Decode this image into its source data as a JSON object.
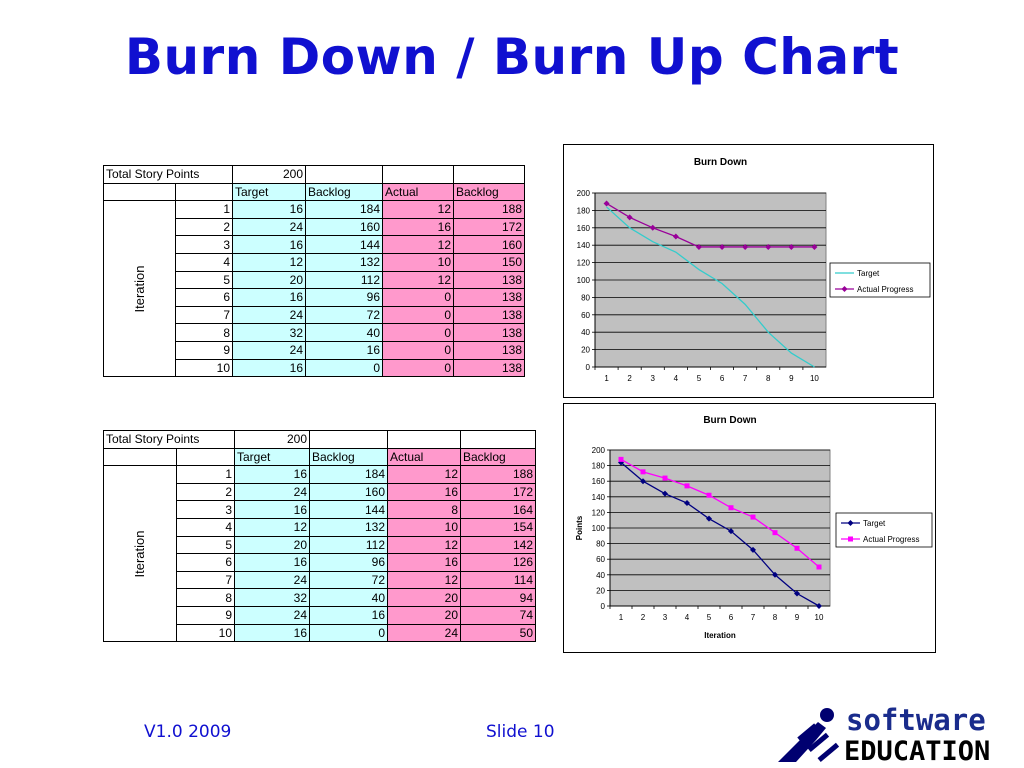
{
  "slide": {
    "title": "Burn Down / Burn Up Chart",
    "version": "V1.0 2009",
    "slide_number": "Slide 10",
    "logo_top": "software",
    "logo_bottom": "EDUCATION"
  },
  "tables": [
    {
      "total_label": "Total Story Points",
      "total_value": "200",
      "headers": [
        "Target",
        "Backlog",
        "Actual",
        "Backlog"
      ],
      "row_group_label": "Iteration",
      "rows": [
        [
          "1",
          "16",
          "184",
          "12",
          "188"
        ],
        [
          "2",
          "24",
          "160",
          "16",
          "172"
        ],
        [
          "3",
          "16",
          "144",
          "12",
          "160"
        ],
        [
          "4",
          "12",
          "132",
          "10",
          "150"
        ],
        [
          "5",
          "20",
          "112",
          "12",
          "138"
        ],
        [
          "6",
          "16",
          "96",
          "0",
          "138"
        ],
        [
          "7",
          "24",
          "72",
          "0",
          "138"
        ],
        [
          "8",
          "32",
          "40",
          "0",
          "138"
        ],
        [
          "9",
          "24",
          "16",
          "0",
          "138"
        ],
        [
          "10",
          "16",
          "0",
          "0",
          "138"
        ]
      ]
    },
    {
      "total_label": "Total Story Points",
      "total_value": "200",
      "headers": [
        "Target",
        "Backlog",
        "Actual",
        "Backlog"
      ],
      "row_group_label": "Iteration",
      "rows": [
        [
          "1",
          "16",
          "184",
          "12",
          "188"
        ],
        [
          "2",
          "24",
          "160",
          "16",
          "172"
        ],
        [
          "3",
          "16",
          "144",
          "8",
          "164"
        ],
        [
          "4",
          "12",
          "132",
          "10",
          "154"
        ],
        [
          "5",
          "20",
          "112",
          "12",
          "142"
        ],
        [
          "6",
          "16",
          "96",
          "16",
          "126"
        ],
        [
          "7",
          "24",
          "72",
          "12",
          "114"
        ],
        [
          "8",
          "32",
          "40",
          "20",
          "94"
        ],
        [
          "9",
          "24",
          "16",
          "20",
          "74"
        ],
        [
          "10",
          "16",
          "0",
          "24",
          "50"
        ]
      ]
    }
  ],
  "chart_data": [
    {
      "type": "line",
      "title": "Burn Down",
      "xlabel": "",
      "ylabel": "",
      "categories": [
        "1",
        "2",
        "3",
        "4",
        "5",
        "6",
        "7",
        "8",
        "9",
        "10"
      ],
      "ylim": [
        0,
        200
      ],
      "yticks": [
        0,
        20,
        40,
        60,
        80,
        100,
        120,
        140,
        160,
        180,
        200
      ],
      "grid": true,
      "legend": "right",
      "series": [
        {
          "name": "Target",
          "color": "#33cccc",
          "marker": "none",
          "values": [
            184,
            160,
            144,
            132,
            112,
            96,
            72,
            40,
            16,
            0
          ]
        },
        {
          "name": "Actual Progress",
          "color": "#990099",
          "marker": "diamond",
          "values": [
            188,
            172,
            160,
            150,
            138,
            138,
            138,
            138,
            138,
            138
          ]
        }
      ]
    },
    {
      "type": "line",
      "title": "Burn Down",
      "xlabel": "Iteration",
      "ylabel": "Points",
      "categories": [
        "1",
        "2",
        "3",
        "4",
        "5",
        "6",
        "7",
        "8",
        "9",
        "10"
      ],
      "ylim": [
        0,
        200
      ],
      "yticks": [
        0,
        20,
        40,
        60,
        80,
        100,
        120,
        140,
        160,
        180,
        200
      ],
      "grid": true,
      "legend": "right",
      "series": [
        {
          "name": "Target",
          "color": "#000080",
          "marker": "diamond",
          "values": [
            184,
            160,
            144,
            132,
            112,
            96,
            72,
            40,
            16,
            0
          ]
        },
        {
          "name": "Actual Progress",
          "color": "#ff00ff",
          "marker": "square",
          "values": [
            188,
            172,
            164,
            154,
            142,
            126,
            114,
            94,
            74,
            50
          ]
        }
      ]
    }
  ]
}
